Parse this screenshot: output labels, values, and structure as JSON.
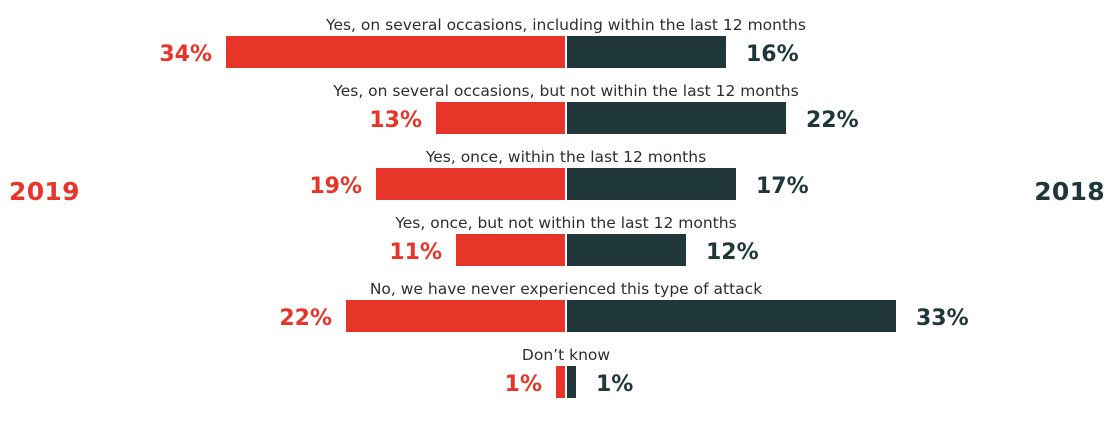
{
  "chart_data": {
    "type": "bar",
    "orientation": "diverging-horizontal",
    "categories": [
      "Yes, on several occasions, including within the last 12 months",
      "Yes, on several occasions, but not within the last 12 months",
      "Yes, once, within the last 12 months",
      "Yes, once, but not within the last 12 months",
      "No, we have never experienced this type of attack",
      "Don’t know"
    ],
    "series": [
      {
        "name": "2019",
        "side": "left",
        "color": "#e8352a",
        "values": [
          34,
          13,
          19,
          11,
          22,
          1
        ],
        "labels": [
          "34%",
          "13%",
          "19%",
          "11%",
          "22%",
          "1%"
        ]
      },
      {
        "name": "2018",
        "side": "right",
        "color": "#1f3739",
        "values": [
          16,
          22,
          17,
          12,
          33,
          1
        ],
        "labels": [
          "16%",
          "22%",
          "17%",
          "12%",
          "33%",
          "1%"
        ]
      }
    ],
    "unit": "%",
    "xlim": [
      0,
      34
    ],
    "grid": false,
    "legend": "left and right sides"
  }
}
